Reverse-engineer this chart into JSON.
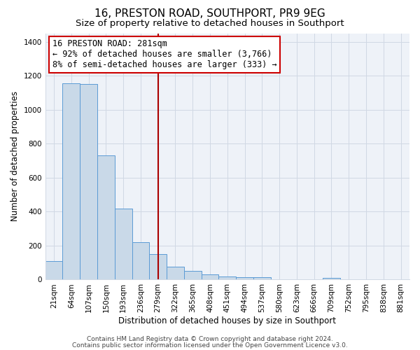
{
  "title": "16, PRESTON ROAD, SOUTHPORT, PR9 9EG",
  "subtitle": "Size of property relative to detached houses in Southport",
  "xlabel": "Distribution of detached houses by size in Southport",
  "ylabel": "Number of detached properties",
  "bar_labels": [
    "21sqm",
    "64sqm",
    "107sqm",
    "150sqm",
    "193sqm",
    "236sqm",
    "279sqm",
    "322sqm",
    "365sqm",
    "408sqm",
    "451sqm",
    "494sqm",
    "537sqm",
    "580sqm",
    "623sqm",
    "666sqm",
    "709sqm",
    "752sqm",
    "795sqm",
    "838sqm",
    "881sqm"
  ],
  "bar_heights": [
    110,
    1155,
    1150,
    730,
    420,
    220,
    150,
    75,
    50,
    30,
    20,
    15,
    15,
    0,
    0,
    0,
    10,
    0,
    0,
    0,
    0
  ],
  "bar_color": "#c9d9e8",
  "bar_edge_color": "#5b9bd5",
  "vline_index": 6,
  "vline_color": "#aa0000",
  "annotation_line1": "16 PRESTON ROAD: 281sqm",
  "annotation_line2": "← 92% of detached houses are smaller (3,766)",
  "annotation_line3": "8% of semi-detached houses are larger (333) →",
  "annotation_box_color": "#ffffff",
  "annotation_box_edge": "#cc0000",
  "ylim": [
    0,
    1450
  ],
  "yticks": [
    0,
    200,
    400,
    600,
    800,
    1000,
    1200,
    1400
  ],
  "grid_color": "#d0d8e4",
  "bg_color": "#eef2f8",
  "footer_line1": "Contains HM Land Registry data © Crown copyright and database right 2024.",
  "footer_line2": "Contains public sector information licensed under the Open Government Licence v3.0.",
  "title_fontsize": 11,
  "subtitle_fontsize": 9.5,
  "axis_label_fontsize": 8.5,
  "tick_fontsize": 7.5,
  "annotation_fontsize": 8.5,
  "footer_fontsize": 6.5
}
